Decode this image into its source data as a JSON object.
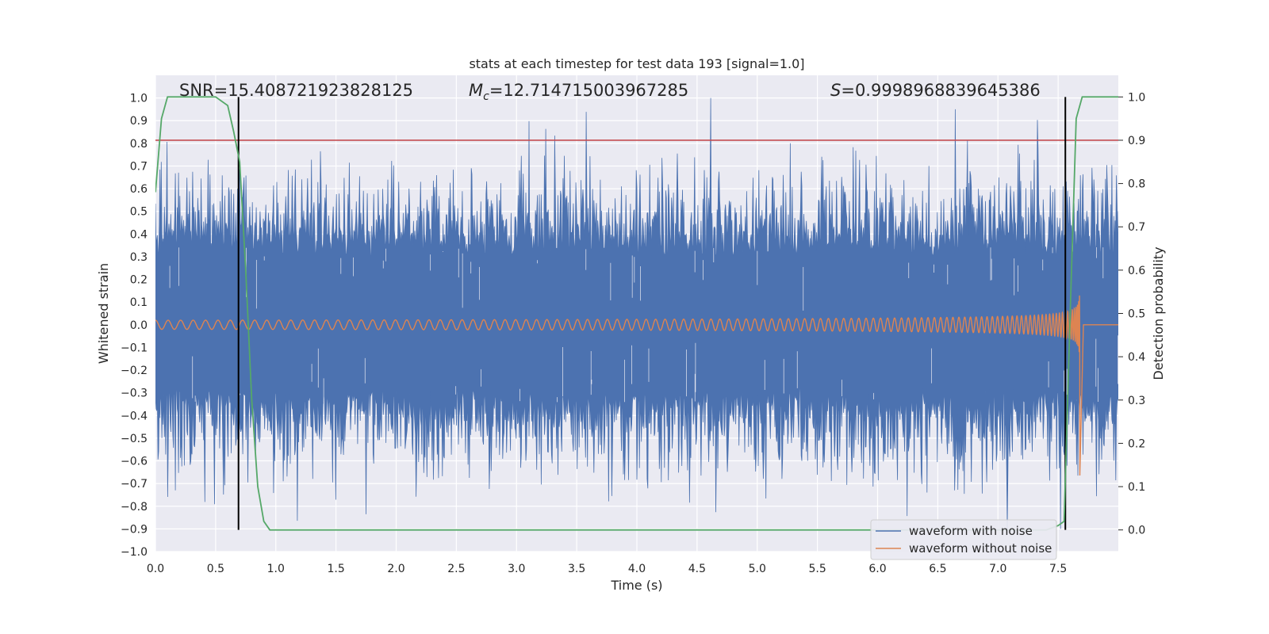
{
  "chart_data": {
    "type": "line",
    "title": "stats at each timestep for test data 193 [signal=1.0]",
    "xlabel": "Time (s)",
    "ylabel": "Whitened strain",
    "y2label": "Detection probability",
    "xlim": [
      0.0,
      8.0
    ],
    "ylim": [
      -1.0,
      1.1
    ],
    "y2lim": [
      -0.05,
      1.05
    ],
    "xticks": [
      0.0,
      0.5,
      1.0,
      1.5,
      2.0,
      2.5,
      3.0,
      3.5,
      4.0,
      4.5,
      5.0,
      5.5,
      6.0,
      6.5,
      7.0,
      7.5
    ],
    "yticks": [
      -1.0,
      -0.9,
      -0.8,
      -0.7,
      -0.6,
      -0.5,
      -0.4,
      -0.3,
      -0.2,
      -0.1,
      0.0,
      0.1,
      0.2,
      0.3,
      0.4,
      0.5,
      0.6,
      0.7,
      0.8,
      0.9,
      1.0
    ],
    "y2ticks": [
      0.0,
      0.1,
      0.2,
      0.3,
      0.4,
      0.5,
      0.6,
      0.7,
      0.8,
      0.9,
      1.0
    ],
    "annotations": {
      "snr": "SNR=15.408721923828125",
      "mc_symbol": "M",
      "mc_sub": "c",
      "mc_value": "=12.714715003967285",
      "s_symbol": "S",
      "s_value": "=0.9998968839645386"
    },
    "threshold": {
      "axis": "right",
      "value": 0.9,
      "color": "#c44e52"
    },
    "vlines": [
      0.69,
      7.56
    ],
    "series": [
      {
        "name": "waveform with noise",
        "color": "#4c72b0",
        "axis": "left",
        "kind": "noise",
        "seed": 193,
        "sigma": 0.17,
        "approx_range": [
          -0.9,
          1.0
        ]
      },
      {
        "name": "waveform without noise",
        "color": "#dd8452",
        "axis": "left",
        "kind": "chirp",
        "start_amplitude": 0.02,
        "merger_time": 7.68,
        "peak_amplitude": 0.6,
        "min_value": -0.67,
        "end_time": 7.72
      },
      {
        "name": "detection probability",
        "color": "#55a868",
        "axis": "right",
        "x": [
          0.0,
          0.05,
          0.1,
          0.15,
          0.2,
          0.3,
          0.4,
          0.5,
          0.6,
          0.65,
          0.7,
          0.75,
          0.8,
          0.85,
          0.9,
          0.95,
          1.0,
          1.5,
          2.0,
          3.0,
          4.0,
          5.0,
          6.0,
          7.0,
          7.4,
          7.5,
          7.55,
          7.6,
          7.65,
          7.7,
          8.0
        ],
        "values": [
          0.78,
          0.95,
          1.0,
          1.0,
          1.0,
          1.0,
          1.0,
          1.0,
          0.98,
          0.92,
          0.85,
          0.6,
          0.3,
          0.1,
          0.02,
          0.0,
          0.0,
          0.0,
          0.0,
          0.0,
          0.0,
          0.0,
          0.0,
          0.0,
          0.0,
          0.01,
          0.02,
          0.5,
          0.95,
          1.0,
          1.0
        ]
      }
    ],
    "legend": {
      "location": "lower-right",
      "entries": [
        {
          "label": "waveform with noise",
          "color": "#4c72b0"
        },
        {
          "label": "waveform without noise",
          "color": "#dd8452"
        }
      ]
    },
    "grid": true,
    "background": "#eaeaf2"
  }
}
